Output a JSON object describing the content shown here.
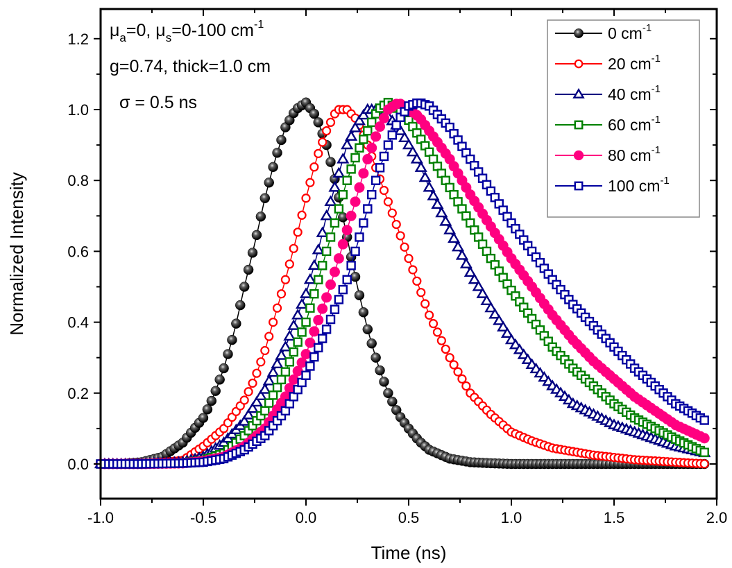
{
  "chart_data": {
    "type": "line",
    "title": "",
    "xlabel": "Time (ns)",
    "ylabel": "Normalized Intensity",
    "xlim": [
      -1.0,
      2.0
    ],
    "ylim": [
      -0.1,
      1.3
    ],
    "x_ticks": [
      "-1.0",
      "-0.5",
      "0.0",
      "0.5",
      "1.0",
      "1.5",
      "2.0"
    ],
    "y_ticks": [
      "0.0",
      "0.2",
      "0.4",
      "0.6",
      "0.8",
      "1.0",
      "1.2"
    ],
    "grid": false,
    "legend_position": "top-right",
    "annotations": {
      "line1": {
        "mu": "μ",
        "a_sub": "a",
        "mid": "=0, ",
        "s_sub": "s",
        "rest": "=0-100 cm",
        "sup": "-1"
      },
      "line2": "g=0.74, thick=1.0 cm",
      "line3": "σ = 0.5 ns"
    },
    "series": [
      {
        "name": "0 cm",
        "sup": "-1",
        "color": "#000000",
        "marker": "sphere",
        "x": [
          -1.0,
          -0.9,
          -0.8,
          -0.7,
          -0.6,
          -0.5,
          -0.45,
          -0.4,
          -0.35,
          -0.3,
          -0.25,
          -0.2,
          -0.15,
          -0.1,
          -0.05,
          0.0,
          0.05,
          0.1,
          0.15,
          0.2,
          0.25,
          0.3,
          0.35,
          0.4,
          0.45,
          0.5,
          0.55,
          0.6,
          0.7,
          0.8,
          0.9,
          1.0,
          1.2,
          1.4,
          1.6,
          1.8,
          1.95
        ],
        "y": [
          0.0,
          0.0,
          0.005,
          0.02,
          0.06,
          0.13,
          0.19,
          0.27,
          0.37,
          0.5,
          0.62,
          0.75,
          0.86,
          0.95,
          1.0,
          1.02,
          0.98,
          0.9,
          0.78,
          0.64,
          0.5,
          0.38,
          0.28,
          0.2,
          0.14,
          0.1,
          0.065,
          0.04,
          0.015,
          0.005,
          0.002,
          0.0,
          0.0,
          0.0,
          0.0,
          0.0,
          0.0
        ]
      },
      {
        "name": "20 cm",
        "sup": "-1",
        "color": "#ff0000",
        "marker": "circle-open",
        "x": [
          -1.0,
          -0.8,
          -0.6,
          -0.5,
          -0.4,
          -0.3,
          -0.25,
          -0.2,
          -0.15,
          -0.1,
          -0.05,
          0.0,
          0.05,
          0.1,
          0.15,
          0.2,
          0.25,
          0.3,
          0.35,
          0.4,
          0.45,
          0.5,
          0.55,
          0.6,
          0.7,
          0.8,
          0.9,
          1.0,
          1.1,
          1.2,
          1.4,
          1.6,
          1.8,
          1.95
        ],
        "y": [
          0.0,
          0.0,
          0.01,
          0.05,
          0.1,
          0.18,
          0.24,
          0.32,
          0.42,
          0.52,
          0.63,
          0.75,
          0.86,
          0.94,
          1.0,
          1.0,
          0.97,
          0.9,
          0.82,
          0.74,
          0.66,
          0.58,
          0.5,
          0.42,
          0.3,
          0.2,
          0.14,
          0.09,
          0.065,
          0.045,
          0.025,
          0.012,
          0.005,
          0.0
        ]
      },
      {
        "name": "40 cm",
        "sup": "-1",
        "color": "#000080",
        "marker": "triangle-open",
        "x": [
          -1.0,
          -0.8,
          -0.6,
          -0.5,
          -0.4,
          -0.3,
          -0.2,
          -0.1,
          0.0,
          0.05,
          0.1,
          0.15,
          0.2,
          0.25,
          0.3,
          0.35,
          0.4,
          0.45,
          0.5,
          0.55,
          0.6,
          0.7,
          0.8,
          0.9,
          1.0,
          1.1,
          1.2,
          1.3,
          1.4,
          1.5,
          1.6,
          1.7,
          1.8,
          1.95
        ],
        "y": [
          0.0,
          0.0,
          0.005,
          0.02,
          0.06,
          0.12,
          0.21,
          0.33,
          0.48,
          0.58,
          0.7,
          0.8,
          0.9,
          0.96,
          1.0,
          1.0,
          0.98,
          0.95,
          0.9,
          0.85,
          0.78,
          0.66,
          0.54,
          0.44,
          0.35,
          0.28,
          0.22,
          0.17,
          0.14,
          0.11,
          0.09,
          0.07,
          0.05,
          0.03
        ]
      },
      {
        "name": "60 cm",
        "sup": "-1",
        "color": "#008000",
        "marker": "square-open",
        "x": [
          -1.0,
          -0.8,
          -0.6,
          -0.5,
          -0.4,
          -0.3,
          -0.2,
          -0.1,
          0.0,
          0.05,
          0.1,
          0.15,
          0.2,
          0.25,
          0.3,
          0.35,
          0.4,
          0.45,
          0.5,
          0.6,
          0.7,
          0.8,
          0.9,
          1.0,
          1.1,
          1.2,
          1.3,
          1.4,
          1.5,
          1.6,
          1.7,
          1.8,
          1.95
        ],
        "y": [
          0.0,
          0.0,
          0.003,
          0.01,
          0.03,
          0.08,
          0.15,
          0.26,
          0.4,
          0.5,
          0.6,
          0.7,
          0.8,
          0.88,
          0.94,
          1.0,
          1.02,
          1.0,
          0.97,
          0.88,
          0.78,
          0.68,
          0.58,
          0.49,
          0.41,
          0.33,
          0.27,
          0.22,
          0.17,
          0.13,
          0.1,
          0.07,
          0.03
        ]
      },
      {
        "name": "80 cm",
        "sup": "-1",
        "color": "#ff0080",
        "marker": "circle-filled",
        "x": [
          -1.0,
          -0.8,
          -0.6,
          -0.5,
          -0.4,
          -0.3,
          -0.2,
          -0.1,
          0.0,
          0.1,
          0.15,
          0.2,
          0.25,
          0.3,
          0.35,
          0.4,
          0.45,
          0.5,
          0.55,
          0.6,
          0.7,
          0.8,
          0.9,
          1.0,
          1.1,
          1.2,
          1.3,
          1.4,
          1.5,
          1.6,
          1.7,
          1.8,
          1.95
        ],
        "y": [
          0.0,
          0.0,
          0.002,
          0.008,
          0.02,
          0.05,
          0.1,
          0.19,
          0.31,
          0.47,
          0.56,
          0.66,
          0.76,
          0.86,
          0.94,
          1.0,
          1.02,
          1.0,
          0.98,
          0.94,
          0.86,
          0.76,
          0.67,
          0.58,
          0.5,
          0.42,
          0.35,
          0.29,
          0.24,
          0.19,
          0.15,
          0.11,
          0.07
        ]
      },
      {
        "name": "100 cm",
        "sup": "-1",
        "color": "#0000a0",
        "marker": "square-open",
        "x": [
          -1.0,
          -0.8,
          -0.6,
          -0.5,
          -0.4,
          -0.3,
          -0.2,
          -0.1,
          0.0,
          0.1,
          0.2,
          0.25,
          0.3,
          0.35,
          0.4,
          0.45,
          0.5,
          0.55,
          0.6,
          0.65,
          0.7,
          0.8,
          0.9,
          1.0,
          1.1,
          1.2,
          1.3,
          1.4,
          1.5,
          1.6,
          1.7,
          1.8,
          1.95
        ],
        "y": [
          0.0,
          0.0,
          0.002,
          0.005,
          0.015,
          0.04,
          0.08,
          0.15,
          0.25,
          0.38,
          0.52,
          0.62,
          0.72,
          0.82,
          0.9,
          0.97,
          1.01,
          1.02,
          1.01,
          0.98,
          0.95,
          0.86,
          0.77,
          0.68,
          0.6,
          0.52,
          0.45,
          0.39,
          0.33,
          0.27,
          0.22,
          0.17,
          0.12
        ]
      }
    ]
  }
}
